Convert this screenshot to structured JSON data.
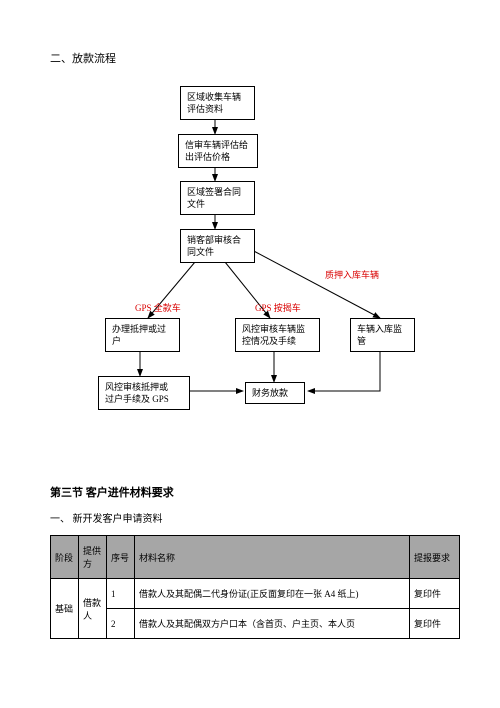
{
  "section2": {
    "title": "二、放款流程"
  },
  "flow": {
    "nodes": {
      "n1": "区域收集车辆\n评估资料",
      "n2": "信审车辆评估给\n出评估价格",
      "n3": "区域签署合同\n文件",
      "n4": "销客部审核合\n同文件",
      "n5": "办理抵押或过\n户",
      "n6": "风控审核抵押或\n过户手续及 GPS",
      "n7": "风控审核车辆监\n控情况及手续",
      "n8": "车辆入库监\n管",
      "n9": "财务放款"
    },
    "labels": {
      "l1": "GPS 全款车",
      "l2": "GPS 按揭车",
      "l3": "质押入库车辆"
    }
  },
  "section3": {
    "heading": "第三节 客户进件材料要求",
    "sub": "一、  新开发客户申请资料"
  },
  "table": {
    "headers": {
      "c1": "阶段",
      "c2": "提供方",
      "c3": "序号",
      "c4": "材料名称",
      "c5": "提报要求"
    },
    "phase": "基础",
    "provider": "借款人",
    "rows": [
      {
        "seq": "1",
        "name": "借款人及其配偶二代身份证(正反面复印在一张 A4 纸上)",
        "req": "复印件"
      },
      {
        "seq": "2",
        "name": "借款人及其配偶双方户口本（含首页、户主页、本人页",
        "req": "复印件"
      }
    ]
  }
}
